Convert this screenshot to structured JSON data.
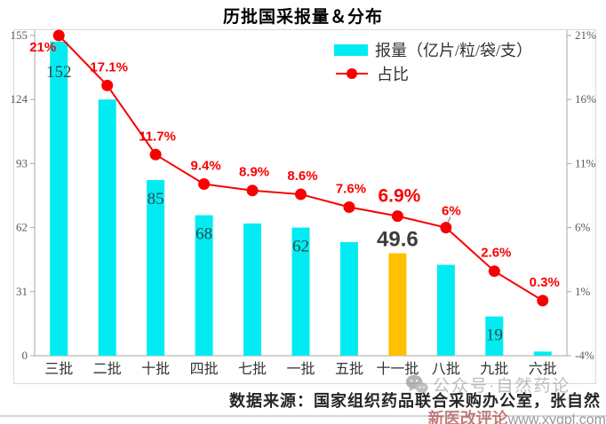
{
  "title": "历批国采报量＆分布",
  "legend": {
    "bar_label": "报量（亿片/粒/袋/支）",
    "line_label": "占比"
  },
  "source_note": "数据来源：国家组织药品联合采购办公室，张自然",
  "watermarks": {
    "wechat": "公众号·自然药论",
    "review_name": "新医改评论",
    "review_url": "www.xygpl.com"
  },
  "colors": {
    "bar": "#00ECF2",
    "bar_highlight": "#FFC000",
    "line": "#F80000",
    "pct_label": "#F80000",
    "bar_value_label": "#2D4A4E",
    "emphasis_value_label": "#3D3D3D",
    "axis_text": "#595959",
    "category_text": "#333333",
    "frame_border": "#D9D9D9",
    "axis_line": "#A6A6A6",
    "leader_line": "#999999"
  },
  "chart_data": {
    "type": "bar",
    "subtype": "combo-bar-line-dual-axis",
    "title": "历批国采报量＆分布",
    "categories": [
      "三批",
      "二批",
      "十批",
      "四批",
      "七批",
      "一批",
      "五批",
      "十一批",
      "八批",
      "九批",
      "六批"
    ],
    "series": [
      {
        "name": "报量（亿片/粒/袋/支）",
        "type": "bar",
        "axis": "left",
        "values": [
          152,
          124,
          85,
          68,
          64,
          62,
          55,
          49.6,
          44,
          19,
          2
        ],
        "data_labels": [
          "152",
          "",
          "85",
          "68",
          "",
          "62",
          "",
          "49.6",
          "",
          "19",
          ""
        ],
        "highlight_index": 7
      },
      {
        "name": "占比",
        "type": "line",
        "axis": "right",
        "values": [
          21,
          17.1,
          11.7,
          9.4,
          8.9,
          8.6,
          7.6,
          6.9,
          6,
          2.6,
          0.3
        ],
        "data_labels": [
          "21%",
          "17.1%",
          "11.7%",
          "9.4%",
          "8.9%",
          "8.6%",
          "7.6%",
          "6.9%",
          "6%",
          "2.6%",
          "0.3%"
        ],
        "emphasis_index": 7,
        "leader_line_index": 8
      }
    ],
    "y_left": {
      "tick_labels": [
        "155",
        "124",
        "93",
        "62",
        "31",
        "0"
      ],
      "tick_values": [
        155,
        124,
        93,
        62,
        31,
        0
      ],
      "min": 0,
      "max": 155
    },
    "y_right": {
      "tick_labels": [
        "21%",
        "16%",
        "11%",
        "6%",
        "1%",
        "-4%"
      ],
      "tick_values": [
        21,
        16,
        11,
        6,
        1,
        -4
      ],
      "min": -4,
      "max": 21
    },
    "legend_position": "top-right",
    "grid": false
  }
}
